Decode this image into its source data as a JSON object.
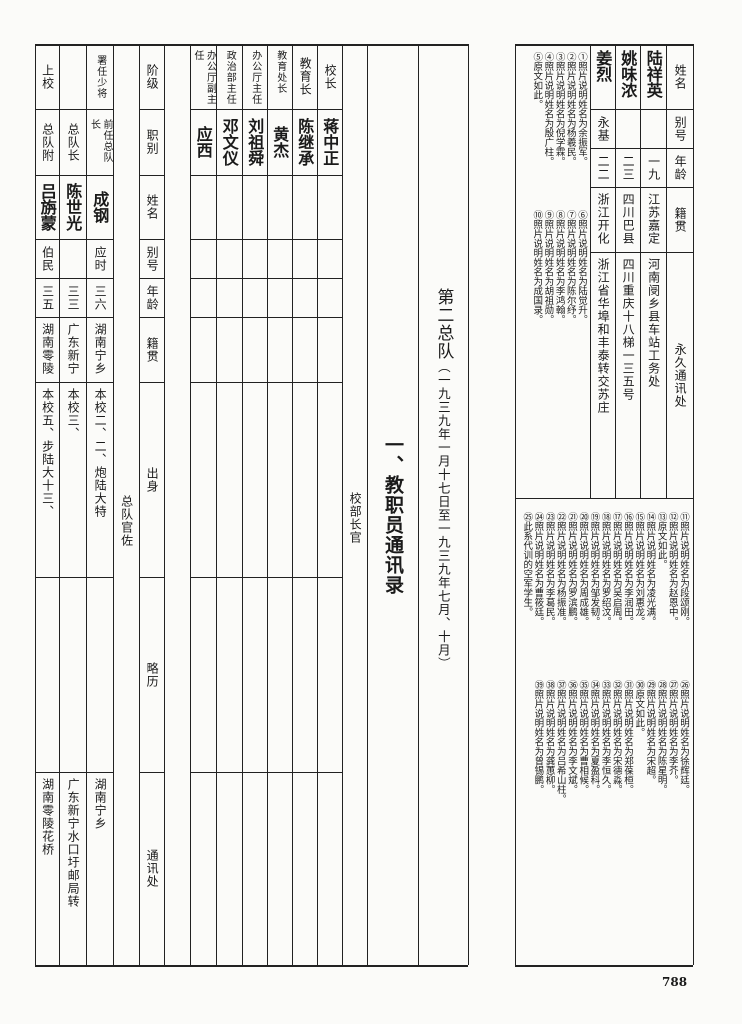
{
  "page_number": "788",
  "title": "一、教职员通讯录",
  "subtitle": {
    "unit": "第二总队",
    "dates": "（一九三九年一月十七日至一九三九年七月、十月）"
  },
  "left_table": {
    "headers": [
      "阶级",
      "职别",
      "姓名",
      "别号",
      "年龄",
      "籍贯",
      "出身",
      "略历",
      "通讯处"
    ],
    "officers_label": "总队官佐",
    "officers": [
      {
        "rank": "上校",
        "post": "总队附",
        "name": "吕旃蒙",
        "alias": "伯民",
        "age": "三五",
        "origin": "湖南零陵",
        "background": "本校五、步陆大十三、",
        "history": "",
        "address": "湖南零陵花桥"
      },
      {
        "rank": "",
        "post": "总队长",
        "name": "陈世光",
        "alias": "",
        "age": "三三",
        "origin": "广东新宁",
        "background": "本校三、",
        "history": "",
        "address": "广东新宁水口圩邮局转"
      },
      {
        "rank": "署任少将",
        "post": "前任总队长",
        "name": "成钢",
        "alias": "应时",
        "age": "三六",
        "origin": "湖南宁乡",
        "background": "本校二、二、炮陆大特",
        "history": "",
        "address": "湖南宁乡"
      }
    ],
    "staff_label": "校部长官",
    "staff": [
      {
        "post": "办公厅副主任",
        "name": "应西"
      },
      {
        "post": "政治部主任",
        "name": "邓文仪"
      },
      {
        "post": "办公厅主任",
        "name": "刘祖舜"
      },
      {
        "post": "教育处长",
        "name": "黄杰"
      },
      {
        "post": "教育长",
        "name": "陈继承"
      },
      {
        "post": "校长",
        "name": "蒋中正"
      }
    ]
  },
  "right_table": {
    "headers": [
      "姓名",
      "别号",
      "年龄",
      "籍贯",
      "永久通讯处"
    ],
    "rows": [
      {
        "name": "陆祥英",
        "alias": "",
        "age": "一九",
        "origin": "江苏嘉定",
        "address": "河南阌乡县车站工务处"
      },
      {
        "name": "姚味浓",
        "alias": "",
        "age": "二三",
        "origin": "四川巴县",
        "address": "四川重庆十八梯一三五号"
      },
      {
        "name": "姜烈",
        "alias": "永基",
        "age": "二二",
        "origin": "浙江开化",
        "address": "浙江省华埠和丰泰转交苏庄"
      }
    ]
  },
  "notes": {
    "block1": [
      "①照片说明姓名为余振军。",
      "②照片说明姓名为杨羲民。",
      "③照片说明姓名为倪学霖。",
      "④照片说明姓名为殷广柱。",
      "⑤原文如此。"
    ],
    "block2": [
      "⑥照片说明姓名为陆觉升。",
      "⑦照片说明姓名为陈尔纾。",
      "⑧照片说明姓名为李鸿翰。",
      "⑨照片说明姓名为胡祖勋。",
      "⑩照片说明姓名为成国录。"
    ],
    "block3": [
      "⑪照片说明姓名为段颂刚。",
      "⑫照片说明姓名为赵恩中。",
      "⑬原文如此。",
      "⑭照片说明姓名为凌光满。",
      "⑮照片说明姓名为刘惠龙。",
      "⑯照片说明姓名为李润田。",
      "⑰照片说明姓名为吴启周。",
      "⑱照片说明姓名为罗绍汶。",
      "⑲照片说明姓名为邹发韧。",
      "⑳照片说明姓名为周成雄。",
      "㉑照片说明姓名为罗滨鹏。",
      "㉒照片说明姓名为杨振准。",
      "㉓照片说明姓名为李葛民。",
      "㉔照片说明姓名为曹筱廷。",
      "㉕此系代训的空军学生。"
    ],
    "block4": [
      "㉖照片说明姓名为徐辉廷。",
      "㉗照片说明姓名为李芥。",
      "㉘照片说明姓名为陈星明。",
      "㉙照片说明姓名为宋超。",
      "㉚原文如此。",
      "㉛照片说明姓名为郑葆桓。",
      "㉜照片说明姓名为宋德淼。",
      "㉝照片说明姓名为李恒久。",
      "㉞照片说明姓名为夏盈科。",
      "㉟照片说明姓名为曹相候。",
      "㊱照片说明姓名为李文斌。",
      "㊲照片说明姓名为吕希山柱。",
      "㊳照片说明姓名为龚蕙柳。",
      "㊴照片说明姓名为曾锡鹏。"
    ]
  }
}
